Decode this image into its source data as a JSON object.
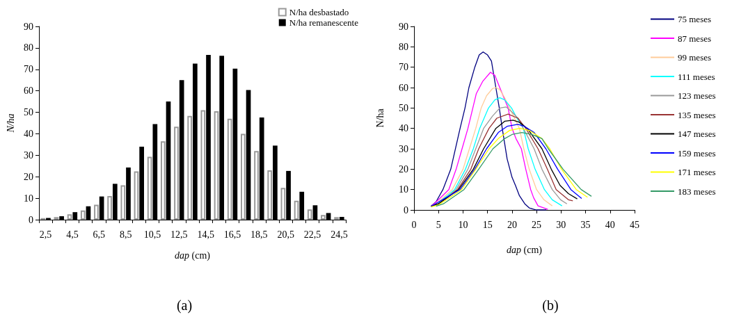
{
  "chart_data": [
    {
      "type": "bar",
      "title": "(a)",
      "xlabel": "dap (cm)",
      "ylabel": "N/ha",
      "categories": [
        "2,5",
        null,
        "4,5",
        null,
        "6,5",
        null,
        "8,5",
        null,
        "10,5",
        null,
        "12,5",
        null,
        "14,5",
        null,
        "16,5",
        null,
        "18,5",
        null,
        "20,5",
        null,
        "22,5",
        null,
        "24,5"
      ],
      "series": [
        {
          "name": "N/ha desbastado",
          "color": "#999999",
          "values": [
            0.7,
            1.2,
            2.5,
            4.3,
            7,
            11,
            16,
            22.5,
            29.3,
            36.5,
            43.3,
            48.3,
            51,
            50.5,
            47,
            40,
            32,
            23,
            14.8,
            8.8,
            4.8,
            2.2,
            1.2
          ]
        },
        {
          "name": "N/ha remanescente",
          "color": "#000000",
          "values": [
            0.8,
            1.6,
            3.5,
            6.2,
            10.8,
            16.7,
            24.3,
            34,
            44.5,
            55,
            65,
            72.7,
            76.7,
            76.3,
            70.3,
            60.4,
            47.6,
            34.5,
            22.7,
            13,
            6.7,
            3.1,
            1.3
          ]
        }
      ],
      "ylim": [
        0,
        90
      ],
      "yticks": [
        0,
        10,
        20,
        30,
        40,
        50,
        60,
        70,
        80,
        90
      ],
      "grid": false,
      "legend": "top right"
    },
    {
      "type": "line",
      "title": "(b)",
      "xlabel": "dap (cm)",
      "ylabel": "N/ha",
      "xlim": [
        0,
        45
      ],
      "xticks": [
        0,
        5,
        10,
        15,
        20,
        25,
        30,
        35,
        40,
        45
      ],
      "ylim": [
        0,
        90
      ],
      "yticks": [
        0,
        10,
        20,
        30,
        40,
        50,
        60,
        70,
        80,
        90
      ],
      "grid": false,
      "legend": "right",
      "marker": "none",
      "line_style": "solid",
      "series": [
        {
          "name": "75 meses",
          "color": "#000080",
          "x": [
            3.5,
            4.5,
            5.9,
            7.5,
            9.4,
            10.4,
            11.2,
            12.4,
            13.3,
            14.1,
            15,
            15.8,
            16.7,
            17.4,
            18,
            19,
            20,
            20.7,
            21.5,
            22.6,
            23.5,
            24.9,
            27
          ],
          "values": [
            2,
            4,
            10,
            20,
            40,
            50,
            60,
            70,
            76,
            77.5,
            76,
            73,
            60,
            50,
            40,
            25,
            16,
            12,
            7,
            3,
            1,
            0,
            0
          ]
        },
        {
          "name": "87 meses",
          "color": "#ff00ff",
          "x": [
            3.5,
            5,
            7.1,
            8.6,
            9.8,
            11,
            12,
            12.7,
            14,
            15.6,
            16.5,
            17.5,
            19.2,
            20,
            20.8,
            21.9,
            22.8,
            23.8,
            24.4,
            25.3,
            26.5,
            27.3
          ],
          "values": [
            1.8,
            5,
            10,
            20,
            30,
            40,
            50,
            57,
            63,
            67.5,
            66,
            60,
            50,
            40,
            35,
            30,
            20,
            10,
            6,
            2,
            1,
            0.3
          ]
        },
        {
          "name": "99 meses",
          "color": "#ffcc99",
          "x": [
            3.5,
            5,
            7.8,
            10,
            11.3,
            12.6,
            13.7,
            14.8,
            16,
            16.7,
            17.5,
            18.5,
            19.5,
            20.5,
            21.5,
            22.4,
            23.5,
            25,
            26.5,
            28.2
          ],
          "values": [
            1.5,
            4,
            10,
            20,
            30,
            40,
            50,
            56,
            59.5,
            60,
            59,
            55,
            50,
            45,
            40,
            30,
            20,
            10,
            5,
            2
          ]
        },
        {
          "name": "111 meses",
          "color": "#00ffff",
          "x": [
            5,
            8.3,
            10.5,
            12.1,
            13.4,
            15.2,
            16.5,
            17.5,
            18.5,
            19.9,
            21,
            22.3,
            23.3,
            24.7,
            26.6,
            28.2,
            30.2
          ],
          "values": [
            3.5,
            10,
            20,
            30,
            40,
            50,
            54,
            55,
            54,
            50,
            45,
            40,
            30,
            20,
            10,
            5,
            2
          ]
        },
        {
          "name": "123 meses",
          "color": "#999999",
          "x": [
            3.5,
            5,
            8.6,
            11,
            12.6,
            14.2,
            16,
            17.5,
            18.8,
            20,
            21.2,
            22.3,
            24.5,
            26.1,
            28.2,
            29.9,
            31.2
          ],
          "values": [
            1.5,
            3,
            10,
            20,
            30,
            40,
            46,
            50,
            50.5,
            48,
            45,
            40,
            30,
            20,
            10,
            5,
            3
          ]
        },
        {
          "name": "135 meses",
          "color": "#993333",
          "x": [
            3.5,
            5,
            8.9,
            11.6,
            13.2,
            15.3,
            16.9,
            19.2,
            21.2,
            22.8,
            25.3,
            27.2,
            29,
            31.5,
            32.4
          ],
          "values": [
            1.8,
            3,
            10,
            20,
            30,
            40,
            45,
            47,
            45,
            40,
            30,
            20,
            10,
            5,
            4.5
          ]
        },
        {
          "name": "147 meses",
          "color": "#000000",
          "x": [
            3.5,
            5,
            9.1,
            12.1,
            14.2,
            16.7,
            18.5,
            20.2,
            21.5,
            23.1,
            26.1,
            28,
            29.8,
            31.5,
            33.3
          ],
          "values": [
            1.8,
            3,
            10,
            20,
            30,
            40,
            43.5,
            44,
            43,
            40,
            30,
            20,
            12,
            8,
            5.4
          ]
        },
        {
          "name": "159 meses",
          "color": "#0000ff",
          "x": [
            3.5,
            9.4,
            12.4,
            14.8,
            17.2,
            19,
            21.2,
            22.5,
            24.5,
            26.9,
            29.3,
            32,
            34.2
          ],
          "values": [
            1.8,
            10,
            20,
            30,
            38,
            41,
            42,
            41,
            38,
            30,
            20,
            10,
            5.6
          ]
        },
        {
          "name": "171 meses",
          "color": "#ffff00",
          "x": [
            3.5,
            5,
            9.7,
            12.6,
            15.3,
            17.2,
            19.5,
            21.6,
            23.5,
            26.1,
            27.7,
            30.1,
            33.1,
            35.4
          ],
          "values": [
            1.5,
            2.5,
            10,
            20,
            30,
            35,
            39,
            40,
            39,
            35,
            30,
            20,
            10,
            6.2
          ]
        },
        {
          "name": "183 meses",
          "color": "#339966",
          "x": [
            4.5,
            6,
            10.2,
            13.2,
            16.1,
            18.5,
            20,
            22,
            24,
            26.1,
            27.4,
            30.4,
            34.1,
            36.2
          ],
          "values": [
            1.8,
            3,
            10,
            20,
            30,
            35,
            37,
            38,
            37,
            35,
            30,
            20,
            10,
            6.7
          ]
        }
      ]
    }
  ]
}
